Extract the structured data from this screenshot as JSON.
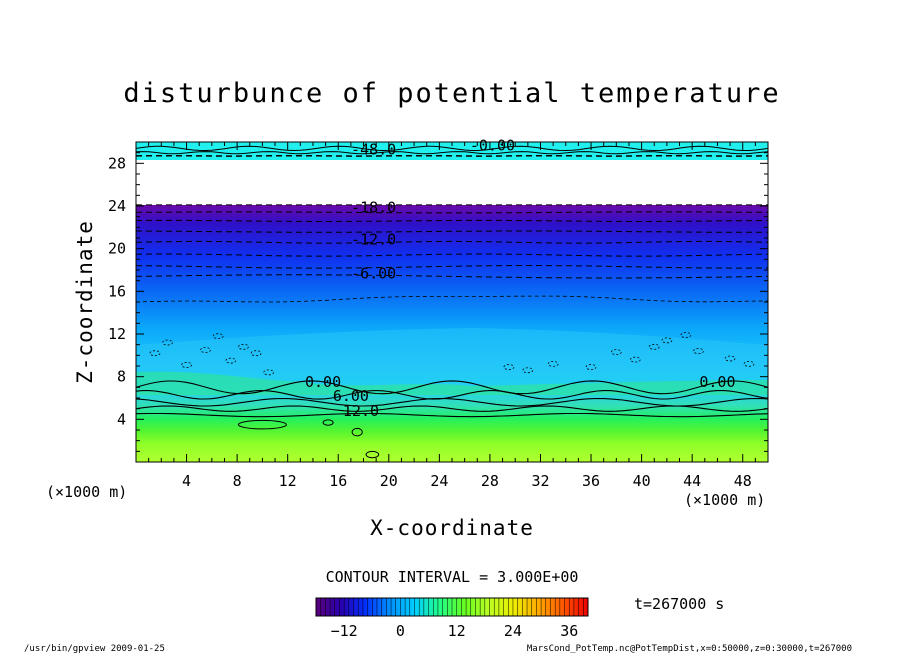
{
  "chart_data": {
    "type": "contour",
    "title": "disturbunce of potential temperature",
    "xlabel": "X-coordinate",
    "ylabel": "Z-coordinate",
    "xunit_left": "(×1000 m)",
    "xunit_right": "(×1000 m)",
    "xlim": [
      0,
      50
    ],
    "ylim": [
      0,
      30
    ],
    "xticks": [
      4,
      8,
      12,
      16,
      20,
      24,
      28,
      32,
      36,
      40,
      44,
      48
    ],
    "yticks": [
      4,
      8,
      12,
      16,
      20,
      24,
      28
    ],
    "contour_interval_text": "CONTOUR INTERVAL = 3.000E+00",
    "time_label": "t=267000 s",
    "contour_labels": [
      {
        "text": "-18.0",
        "x": 18.8,
        "z": 23.6
      },
      {
        "text": "-12.0",
        "x": 18.8,
        "z": 20.6
      },
      {
        "text": "-6.00",
        "x": 18.8,
        "z": 17.4
      },
      {
        "text": "0.00",
        "x": 14.8,
        "z": 7.2
      },
      {
        "text": "6.00",
        "x": 17.0,
        "z": 5.9
      },
      {
        "text": "12.0",
        "x": 17.8,
        "z": 4.5
      },
      {
        "text": "0.00",
        "x": 46.0,
        "z": 7.2
      },
      {
        "text": "-0.00",
        "x": 28.2,
        "z": 29.4
      },
      {
        "text": "-48.0",
        "x": 18.8,
        "z": 29.0
      }
    ],
    "colorbar": {
      "min": -18,
      "max": 40,
      "ticks": [
        -12,
        0,
        12,
        24,
        36
      ],
      "stops": [
        "#5a007a",
        "#2a00b0",
        "#0030ff",
        "#0090ff",
        "#00d0ff",
        "#22ff88",
        "#66ff22",
        "#bbff22",
        "#eeee00",
        "#ffaa00",
        "#ff5500",
        "#ee0000"
      ]
    },
    "field_colors": {
      "top_band": "#22f0ee",
      "gap": "#ffffff",
      "upper_purple": "#6a0aa8",
      "lower": "#a8ff30"
    }
  },
  "footer": {
    "left": "/usr/bin/gpview  2009-01-25",
    "right": "MarsCond_PotTemp.nc@PotTempDist,x=0:50000,z=0:30000,t=267000"
  }
}
